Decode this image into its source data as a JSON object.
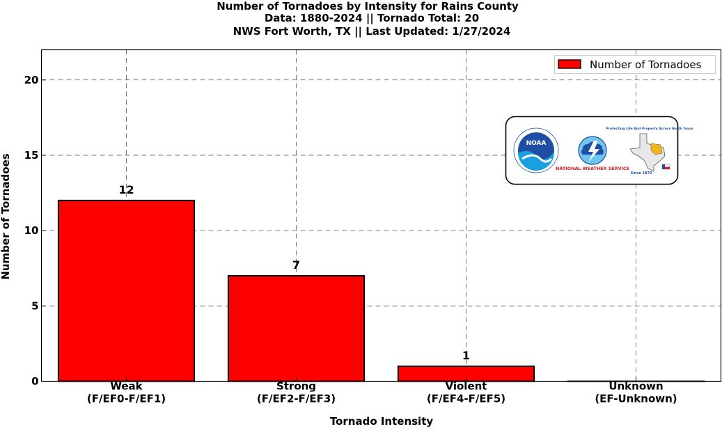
{
  "chart_data": {
    "type": "bar",
    "title": [
      "Number of Tornadoes by Intensity for Rains County",
      "Data: 1880-2024 || Tornado Total: 20",
      "NWS Fort Worth, TX || Last Updated: 1/27/2024"
    ],
    "categories": [
      [
        "Weak",
        "(F/EF0-F/EF1)"
      ],
      [
        "Strong",
        "(F/EF2-F/EF3)"
      ],
      [
        "Violent",
        "(F/EF4-F/EF5)"
      ],
      [
        "Unknown",
        "(EF-Unknown)"
      ]
    ],
    "series": [
      {
        "name": "Number of Tornadoes",
        "values": [
          12,
          7,
          1,
          0
        ],
        "color": "#ff0000"
      }
    ],
    "data_labels": [
      "12",
      "7",
      "1",
      ""
    ],
    "xlabel": "Tornado Intensity",
    "ylabel": "Number of Tornadoes",
    "ylim": [
      0,
      22
    ],
    "yticks": [
      0,
      5,
      10,
      15,
      20
    ],
    "grid": true,
    "legend_position": "top-right"
  },
  "logos": {
    "noaa_text": "NOAA",
    "nws_text": "NATIONAL WEATHER SERVICE",
    "nwsfw_text": "Protecting Life And Property Across North Texas",
    "since_text": "Since 1870"
  },
  "colors": {
    "bar": "#ff0000",
    "noaa_blue": "#1f4ea3",
    "nws_red": "#d21f26"
  }
}
